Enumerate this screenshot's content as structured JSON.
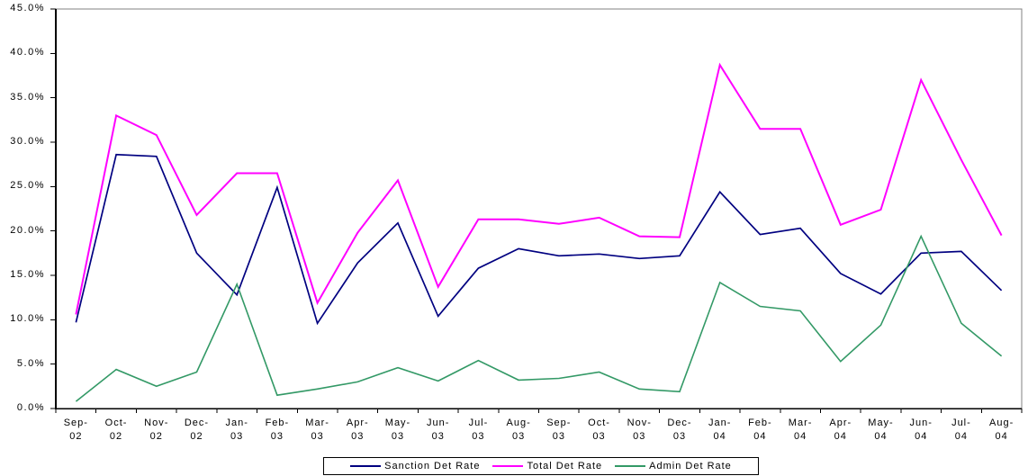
{
  "chart_data": {
    "type": "line",
    "title": "",
    "xlabel": "",
    "ylabel": "",
    "ylim": [
      0,
      45
    ],
    "ytick_step": 5,
    "y_tick_labels": [
      "45.0%",
      "40.0%",
      "35.0%",
      "30.0%",
      "25.0%",
      "20.0%",
      "15.0%",
      "10.0%",
      "5.0%",
      "0.0%"
    ],
    "grid": false,
    "legend_position": "bottom",
    "background_color": "#FFFFFF",
    "axis_color": "#000000",
    "plot_border_color": "#808080",
    "categories": [
      "Sep-02",
      "Oct-02",
      "Nov-02",
      "Dec-02",
      "Jan-03",
      "Feb-03",
      "Mar-03",
      "Apr-03",
      "May-03",
      "Jun-03",
      "Jul-03",
      "Aug-03",
      "Sep-03",
      "Oct-03",
      "Nov-03",
      "Dec-03",
      "Jan-04",
      "Feb-04",
      "Mar-04",
      "Apr-04",
      "May-04",
      "Jun-04",
      "Jul-04",
      "Aug-04"
    ],
    "series": [
      {
        "name": "Sanction Det Rate",
        "color": "#000080",
        "stroke_width": 1.7,
        "values": [
          9.7,
          28.6,
          28.4,
          17.5,
          12.8,
          24.9,
          9.6,
          16.4,
          20.9,
          10.4,
          15.8,
          18.0,
          17.2,
          17.4,
          16.9,
          17.2,
          24.4,
          19.6,
          20.3,
          15.2,
          12.9,
          17.5,
          17.7,
          13.3
        ]
      },
      {
        "name": "Total Det Rate",
        "color": "#FF00FF",
        "stroke_width": 2,
        "values": [
          10.6,
          33.0,
          30.8,
          21.8,
          26.5,
          26.5,
          11.9,
          19.8,
          25.7,
          13.7,
          21.3,
          21.3,
          20.8,
          21.5,
          19.4,
          19.3,
          38.7,
          31.5,
          31.5,
          20.7,
          22.4,
          37.0,
          28.0,
          19.5
        ]
      },
      {
        "name": "Admin Det Rate",
        "color": "#339966",
        "stroke_width": 1.6,
        "values": [
          0.8,
          4.4,
          2.5,
          4.1,
          14.0,
          1.5,
          2.2,
          3.0,
          4.6,
          3.1,
          5.4,
          3.2,
          3.4,
          4.1,
          2.2,
          1.9,
          14.2,
          11.5,
          11.0,
          5.3,
          9.4,
          19.4,
          9.6,
          5.9
        ]
      }
    ]
  }
}
